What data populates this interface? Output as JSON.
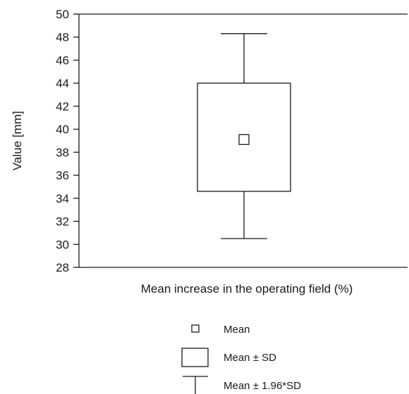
{
  "chart_data": {
    "type": "box",
    "title": "",
    "xlabel": "Mean increase in the operating field (%)",
    "ylabel": "Value [mm]",
    "ylim": [
      28,
      50
    ],
    "yticks": [
      28,
      30,
      32,
      34,
      36,
      38,
      40,
      42,
      44,
      46,
      48,
      50
    ],
    "grid": false,
    "legend_position": "bottom",
    "boxes": [
      {
        "mean": 39.1,
        "sd_lower": 34.6,
        "sd_upper": 44.0,
        "ci_lower": 30.5,
        "ci_upper": 48.3
      }
    ],
    "legend": [
      {
        "symbol": "mean-marker",
        "label": "Mean"
      },
      {
        "symbol": "sd-box",
        "label": "Mean ± SD"
      },
      {
        "symbol": "whisker",
        "label": "Mean ± 1.96*SD"
      }
    ]
  }
}
